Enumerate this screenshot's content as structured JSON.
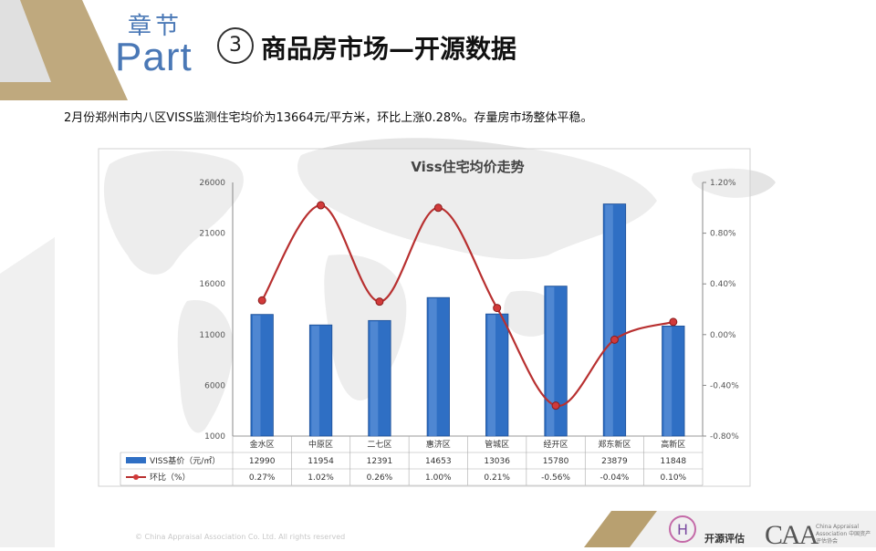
{
  "header": {
    "chapter_cn": "章节",
    "chapter_part": "Part",
    "section_number": "3",
    "section_title": "商品房市场—开源数据"
  },
  "summary_text": "2月份郑州市内八区VISS监测住宅均价为13664元/平方米，环比上涨0.28%。存量房市场整体平稳。",
  "colors": {
    "bar": "#2f6fc4",
    "line": "#b83030",
    "accent_gold": "#b8a070",
    "accent_gray": "#d8d8d8",
    "title_blue": "#4a78b6"
  },
  "chart_data": {
    "type": "bar",
    "title": "Viss住宅均价走势",
    "categories": [
      "金水区",
      "中原区",
      "二七区",
      "惠济区",
      "管城区",
      "经开区",
      "郑东新区",
      "高新区"
    ],
    "series": [
      {
        "name": "VISS基价（元/㎡）",
        "type": "bar",
        "axis": "left",
        "values": [
          12990,
          11954,
          12391,
          14653,
          13036,
          15780,
          23879,
          11848
        ],
        "labels": [
          "12990",
          "11954",
          "12391",
          "14653",
          "13036",
          "15780",
          "23879",
          "11848"
        ]
      },
      {
        "name": "环比（%）",
        "type": "line",
        "axis": "right",
        "values": [
          0.27,
          1.02,
          0.26,
          1.0,
          0.21,
          -0.56,
          -0.04,
          0.1
        ],
        "labels": [
          "0.27%",
          "1.02%",
          "0.26%",
          "1.00%",
          "0.21%",
          "-0.56%",
          "-0.04%",
          "0.10%"
        ]
      }
    ],
    "y_left": {
      "range": [
        1000,
        26000
      ],
      "ticks": [
        "1000",
        "6000",
        "11000",
        "16000",
        "21000",
        "26000"
      ]
    },
    "y_right": {
      "range": [
        -0.8,
        1.2
      ],
      "ticks": [
        "-0.80%",
        "-0.40%",
        "0.00%",
        "0.40%",
        "0.80%",
        "1.20%"
      ]
    },
    "grid": false,
    "legend": "data-table-bottom"
  },
  "footer": {
    "copyright": "© China Appraisal Association Co. Ltd. All rights reserved",
    "logo1_text": "开源评估",
    "logo2_mark": "CAA",
    "logo2_small": "China Appraisal Association 中国资产评估协会"
  }
}
